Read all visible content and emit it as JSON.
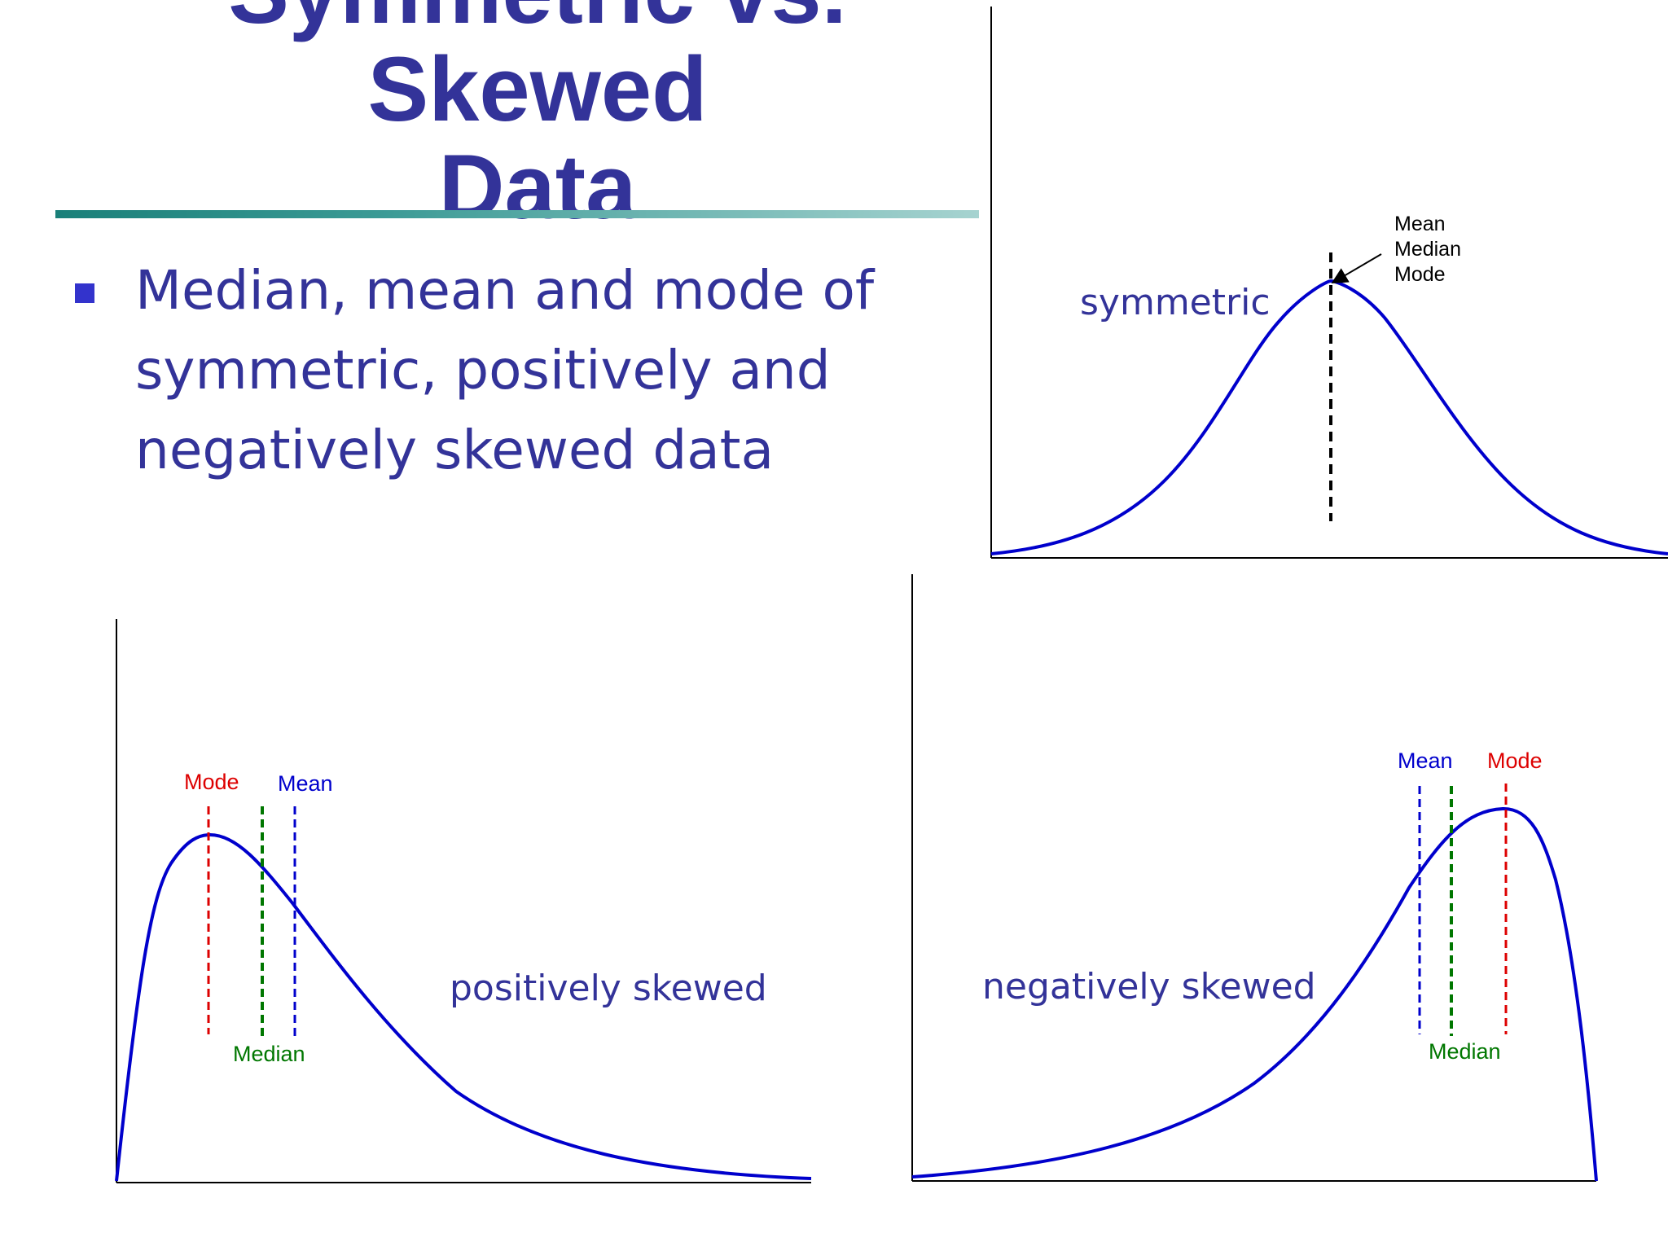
{
  "slide": {
    "title_line1": "Symmetric vs. Skewed",
    "title_line2": "Data",
    "bullet": "Median, mean and mode of symmetric, positively and negatively skewed data"
  },
  "diagrams": {
    "symmetric": {
      "label": "symmetric",
      "annotations": [
        "Mean",
        "Median",
        "Mode"
      ]
    },
    "positive": {
      "label": "positively skewed",
      "mode": "Mode",
      "median": "Median",
      "mean": "Mean"
    },
    "negative": {
      "label": "negatively skewed",
      "mean": "Mean",
      "mode": "Mode",
      "median": "Median"
    }
  },
  "colors": {
    "title": "#333399",
    "curve": "#0000cc",
    "mode": "#dd0000",
    "median": "#007700",
    "mean": "#0000cc"
  }
}
